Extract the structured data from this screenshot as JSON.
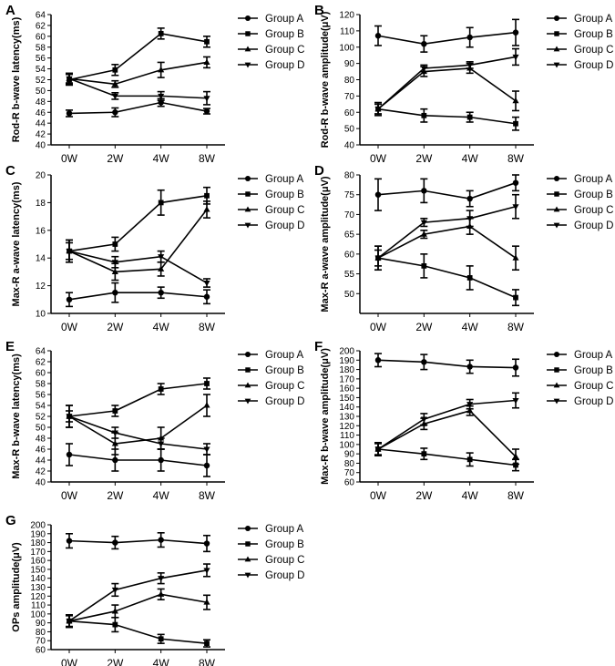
{
  "categories": [
    "0W",
    "2W",
    "4W",
    "8W"
  ],
  "series_names": [
    "Group A",
    "Group B",
    "Group C",
    "Group D"
  ],
  "colors": {
    "ink": "#000000",
    "background": "#ffffff"
  },
  "chart_data": [
    {
      "type": "line",
      "panel": "A",
      "ylabel": "Rod-R b-wave latency(ms)",
      "categories": [
        "0W",
        "2W",
        "4W",
        "8W"
      ],
      "ylim": [
        40,
        64
      ],
      "yticks": [
        40,
        42,
        44,
        46,
        48,
        50,
        52,
        54,
        56,
        58,
        60,
        62,
        64
      ],
      "legend_position": "right",
      "series": [
        {
          "name": "Group A",
          "marker": "circle",
          "values": [
            45.8,
            46.0,
            47.8,
            46.2
          ],
          "errors": [
            0.6,
            0.8,
            0.7,
            0.5
          ]
        },
        {
          "name": "Group B",
          "marker": "square",
          "values": [
            52.0,
            53.8,
            60.5,
            59.0
          ],
          "errors": [
            1.0,
            1.0,
            1.0,
            1.0
          ]
        },
        {
          "name": "Group C",
          "marker": "triangle",
          "values": [
            52.2,
            51.2,
            53.8,
            55.2
          ],
          "errors": [
            1.0,
            0.6,
            1.4,
            1.0
          ]
        },
        {
          "name": "Group D",
          "marker": "tri-down",
          "values": [
            52.2,
            49.0,
            49.0,
            48.6
          ],
          "errors": [
            0.8,
            0.6,
            0.8,
            1.2
          ]
        }
      ]
    },
    {
      "type": "line",
      "panel": "B",
      "ylabel": "Rod-R b-wave amplitude(μV)",
      "categories": [
        "0W",
        "2W",
        "4W",
        "8W"
      ],
      "ylim": [
        40,
        120
      ],
      "yticks": [
        40,
        50,
        60,
        70,
        80,
        90,
        100,
        110,
        120
      ],
      "legend_position": "right",
      "series": [
        {
          "name": "Group A",
          "marker": "circle",
          "values": [
            107,
            102,
            106,
            109
          ],
          "errors": [
            6,
            5,
            6,
            8
          ]
        },
        {
          "name": "Group B",
          "marker": "square",
          "values": [
            62,
            58,
            57,
            53
          ],
          "errors": [
            4,
            4,
            3,
            4
          ]
        },
        {
          "name": "Group C",
          "marker": "triangle",
          "values": [
            62,
            85,
            87,
            67
          ],
          "errors": [
            3,
            3,
            3,
            6
          ]
        },
        {
          "name": "Group D",
          "marker": "tri-down",
          "values": [
            62,
            87,
            89,
            94
          ],
          "errors": [
            3,
            2,
            2,
            5
          ]
        }
      ]
    },
    {
      "type": "line",
      "panel": "C",
      "ylabel": "Max-R a-wave latency(ms)",
      "categories": [
        "0W",
        "2W",
        "4W",
        "8W"
      ],
      "ylim": [
        10,
        20
      ],
      "yticks": [
        10,
        12,
        14,
        16,
        18,
        20
      ],
      "legend_position": "right",
      "series": [
        {
          "name": "Group A",
          "marker": "circle",
          "values": [
            11.0,
            11.5,
            11.5,
            11.2
          ],
          "errors": [
            0.5,
            0.7,
            0.4,
            0.5
          ]
        },
        {
          "name": "Group B",
          "marker": "square",
          "values": [
            14.5,
            15.0,
            18.0,
            18.5
          ],
          "errors": [
            0.8,
            0.5,
            0.9,
            0.6
          ]
        },
        {
          "name": "Group C",
          "marker": "triangle",
          "values": [
            14.5,
            13.0,
            13.2,
            17.5
          ],
          "errors": [
            0.8,
            0.6,
            0.5,
            0.6
          ]
        },
        {
          "name": "Group D",
          "marker": "tri-down",
          "values": [
            14.5,
            13.7,
            14.1,
            12.2
          ],
          "errors": [
            0.6,
            0.4,
            0.4,
            0.3
          ]
        }
      ]
    },
    {
      "type": "line",
      "panel": "D",
      "ylabel": "Max-R a-wave amplitude(μV)",
      "categories": [
        "0W",
        "2W",
        "4W",
        "8W"
      ],
      "ylim": [
        45,
        80
      ],
      "yticks": [
        50,
        55,
        60,
        65,
        70,
        75,
        80
      ],
      "legend_position": "right",
      "series": [
        {
          "name": "Group A",
          "marker": "circle",
          "values": [
            75,
            76,
            74,
            78
          ],
          "errors": [
            4,
            3,
            2,
            2
          ]
        },
        {
          "name": "Group B",
          "marker": "square",
          "values": [
            59,
            57,
            54,
            49
          ],
          "errors": [
            3,
            3,
            3,
            2
          ]
        },
        {
          "name": "Group C",
          "marker": "triangle",
          "values": [
            59,
            65,
            67,
            59
          ],
          "errors": [
            3,
            1,
            2,
            3
          ]
        },
        {
          "name": "Group D",
          "marker": "tri-down",
          "values": [
            59,
            68,
            69,
            72
          ],
          "errors": [
            2,
            1,
            2,
            3
          ]
        }
      ]
    },
    {
      "type": "line",
      "panel": "E",
      "ylabel": "Max-R b-wave latency(ms)",
      "categories": [
        "0W",
        "2W",
        "4W",
        "8W"
      ],
      "ylim": [
        40,
        64
      ],
      "yticks": [
        40,
        42,
        44,
        46,
        48,
        50,
        52,
        54,
        56,
        58,
        60,
        62,
        64
      ],
      "legend_position": "right",
      "series": [
        {
          "name": "Group A",
          "marker": "circle",
          "values": [
            45,
            44,
            44,
            43
          ],
          "errors": [
            2,
            2,
            2,
            2
          ]
        },
        {
          "name": "Group B",
          "marker": "square",
          "values": [
            52,
            53,
            57,
            58
          ],
          "errors": [
            2,
            1,
            1,
            1
          ]
        },
        {
          "name": "Group C",
          "marker": "triangle",
          "values": [
            52,
            47,
            48,
            54
          ],
          "errors": [
            2,
            2,
            2,
            2
          ]
        },
        {
          "name": "Group D",
          "marker": "tri-down",
          "values": [
            52,
            49,
            47,
            46
          ],
          "errors": [
            1,
            1,
            1,
            1
          ]
        }
      ]
    },
    {
      "type": "line",
      "panel": "F",
      "ylabel": "Max-R b-wave amplitude(μV)",
      "categories": [
        "0W",
        "2W",
        "4W",
        "8W"
      ],
      "ylim": [
        60,
        200
      ],
      "yticks": [
        60,
        70,
        80,
        90,
        100,
        110,
        120,
        130,
        140,
        150,
        160,
        170,
        180,
        190,
        200
      ],
      "legend_position": "right",
      "series": [
        {
          "name": "Group A",
          "marker": "circle",
          "values": [
            190,
            188,
            183,
            182
          ],
          "errors": [
            7,
            8,
            7,
            9
          ]
        },
        {
          "name": "Group B",
          "marker": "square",
          "values": [
            95,
            90,
            84,
            78
          ],
          "errors": [
            7,
            6,
            7,
            6
          ]
        },
        {
          "name": "Group C",
          "marker": "triangle",
          "values": [
            95,
            122,
            136,
            87
          ],
          "errors": [
            6,
            6,
            5,
            8
          ]
        },
        {
          "name": "Group D",
          "marker": "tri-down",
          "values": [
            95,
            127,
            143,
            147
          ],
          "errors": [
            6,
            6,
            5,
            8
          ]
        }
      ]
    },
    {
      "type": "line",
      "panel": "G",
      "ylabel": "OPs amplitude(μV)",
      "categories": [
        "0W",
        "2W",
        "4W",
        "8W"
      ],
      "ylim": [
        60,
        200
      ],
      "yticks": [
        60,
        70,
        80,
        90,
        100,
        110,
        120,
        130,
        140,
        150,
        160,
        170,
        180,
        190,
        200
      ],
      "legend_position": "right",
      "series": [
        {
          "name": "Group A",
          "marker": "circle",
          "values": [
            182,
            180,
            183,
            179
          ],
          "errors": [
            8,
            7,
            8,
            9
          ]
        },
        {
          "name": "Group B",
          "marker": "square",
          "values": [
            92,
            88,
            72,
            67
          ],
          "errors": [
            7,
            8,
            5,
            4
          ]
        },
        {
          "name": "Group C",
          "marker": "triangle",
          "values": [
            92,
            103,
            122,
            113
          ],
          "errors": [
            6,
            7,
            6,
            8
          ]
        },
        {
          "name": "Group D",
          "marker": "tri-down",
          "values": [
            92,
            127,
            140,
            149
          ],
          "errors": [
            7,
            7,
            6,
            7
          ]
        }
      ]
    }
  ]
}
